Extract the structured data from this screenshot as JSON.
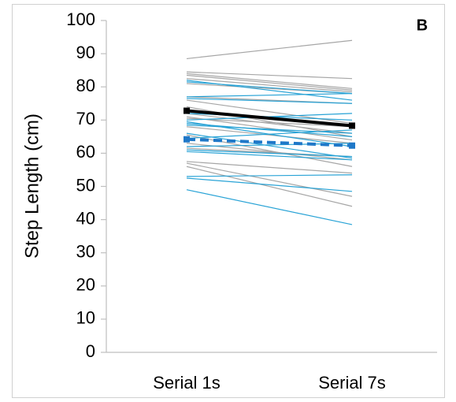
{
  "chart_data": {
    "type": "line",
    "panel_label": "B",
    "y_label": "Step Length (cm)",
    "categories": [
      "Serial 1s",
      "Serial 7s"
    ],
    "ylim": [
      0,
      100
    ],
    "yticks": [
      0,
      10,
      20,
      30,
      40,
      50,
      60,
      70,
      80,
      90,
      100
    ],
    "grid": false,
    "series": [
      {
        "color": "#a6a6a6",
        "values": [
          88.5,
          94
        ]
      },
      {
        "color": "#a6a6a6",
        "values": [
          84.5,
          82.5
        ]
      },
      {
        "color": "#a6a6a6",
        "values": [
          84,
          79.5
        ]
      },
      {
        "color": "#a6a6a6",
        "values": [
          83.5,
          79
        ]
      },
      {
        "color": "#a6a6a6",
        "values": [
          82.5,
          78.5
        ]
      },
      {
        "color": "#a6a6a6",
        "values": [
          81,
          78
        ]
      },
      {
        "color": "#a6a6a6",
        "values": [
          77,
          75
        ]
      },
      {
        "color": "#a6a6a6",
        "values": [
          76,
          69
        ]
      },
      {
        "color": "#a6a6a6",
        "values": [
          74,
          65
        ]
      },
      {
        "color": "#a6a6a6",
        "values": [
          72,
          66
        ]
      },
      {
        "color": "#a6a6a6",
        "values": [
          71,
          64
        ]
      },
      {
        "color": "#a6a6a6",
        "values": [
          70.5,
          68
        ]
      },
      {
        "color": "#a6a6a6",
        "values": [
          68,
          63
        ]
      },
      {
        "color": "#a6a6a6",
        "values": [
          65.5,
          56
        ]
      },
      {
        "color": "#a6a6a6",
        "values": [
          63,
          58
        ]
      },
      {
        "color": "#a6a6a6",
        "values": [
          61.5,
          59
        ]
      },
      {
        "color": "#a6a6a6",
        "values": [
          57.5,
          54
        ]
      },
      {
        "color": "#a6a6a6",
        "values": [
          57,
          47
        ]
      },
      {
        "color": "#a6a6a6",
        "values": [
          56,
          44
        ]
      },
      {
        "color": "#29a3d6",
        "values": [
          82,
          76
        ]
      },
      {
        "color": "#29a3d6",
        "values": [
          81.5,
          78
        ]
      },
      {
        "color": "#29a3d6",
        "values": [
          77,
          78
        ]
      },
      {
        "color": "#29a3d6",
        "values": [
          76.5,
          75
        ]
      },
      {
        "color": "#29a3d6",
        "values": [
          72,
          70
        ]
      },
      {
        "color": "#29a3d6",
        "values": [
          70,
          72
        ]
      },
      {
        "color": "#29a3d6",
        "values": [
          69.5,
          62
        ]
      },
      {
        "color": "#29a3d6",
        "values": [
          69,
          65
        ]
      },
      {
        "color": "#29a3d6",
        "values": [
          68.5,
          66
        ]
      },
      {
        "color": "#29a3d6",
        "values": [
          66,
          58.5
        ]
      },
      {
        "color": "#29a3d6",
        "values": [
          64.5,
          67
        ]
      },
      {
        "color": "#29a3d6",
        "values": [
          62,
          63
        ]
      },
      {
        "color": "#29a3d6",
        "values": [
          61,
          59
        ]
      },
      {
        "color": "#29a3d6",
        "values": [
          60.5,
          58
        ]
      },
      {
        "color": "#29a3d6",
        "values": [
          53,
          53.5
        ]
      },
      {
        "color": "#29a3d6",
        "values": [
          52.5,
          48.5
        ]
      },
      {
        "color": "#29a3d6",
        "values": [
          49,
          38.5
        ]
      },
      {
        "color": "#000000",
        "values": [
          72.8,
          68.3
        ],
        "mean": true
      },
      {
        "color": "#1f78c8",
        "values": [
          64.2,
          62.3
        ],
        "mean": true,
        "dashed": true
      }
    ]
  }
}
